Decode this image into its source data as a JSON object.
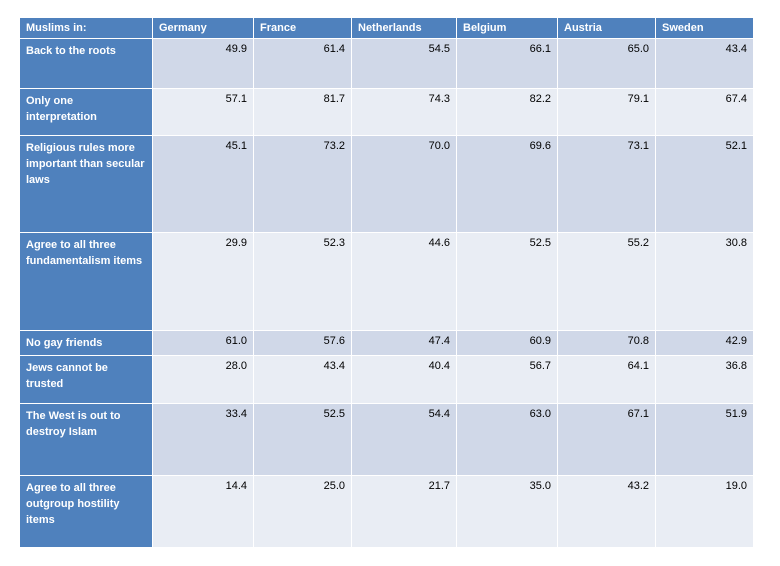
{
  "table": {
    "header": [
      "Muslims in:",
      "Germany",
      "France",
      "Netherlands",
      "Belgium",
      "Austria",
      "Sweden"
    ],
    "rows": [
      [
        "Back to the roots",
        "49.9",
        "61.4",
        "54.5",
        "66.1",
        "65.0",
        "43.4"
      ],
      [
        "Only one interpretation",
        "57.1",
        "81.7",
        "74.3",
        "82.2",
        "79.1",
        "67.4"
      ],
      [
        "Religious rules more important than secular laws",
        "45.1",
        "73.2",
        "70.0",
        "69.6",
        "73.1",
        "52.1"
      ],
      [
        "Agree to all three fundamentalism items",
        "29.9",
        "52.3",
        "44.6",
        "52.5",
        "55.2",
        "30.8"
      ],
      [
        "No gay friends",
        "61.0",
        "57.6",
        "47.4",
        "60.9",
        "70.8",
        "42.9"
      ],
      [
        "Jews cannot be trusted",
        "28.0",
        "43.4",
        "40.4",
        "56.7",
        "64.1",
        "36.8"
      ],
      [
        "The West is out to destroy Islam",
        "33.4",
        "52.5",
        "54.4",
        "63.0",
        "67.1",
        "51.9"
      ],
      [
        "Agree to all three outgroup hostility items",
        "14.4",
        "25.0",
        "21.7",
        "35.0",
        "43.2",
        "19.0"
      ]
    ]
  }
}
